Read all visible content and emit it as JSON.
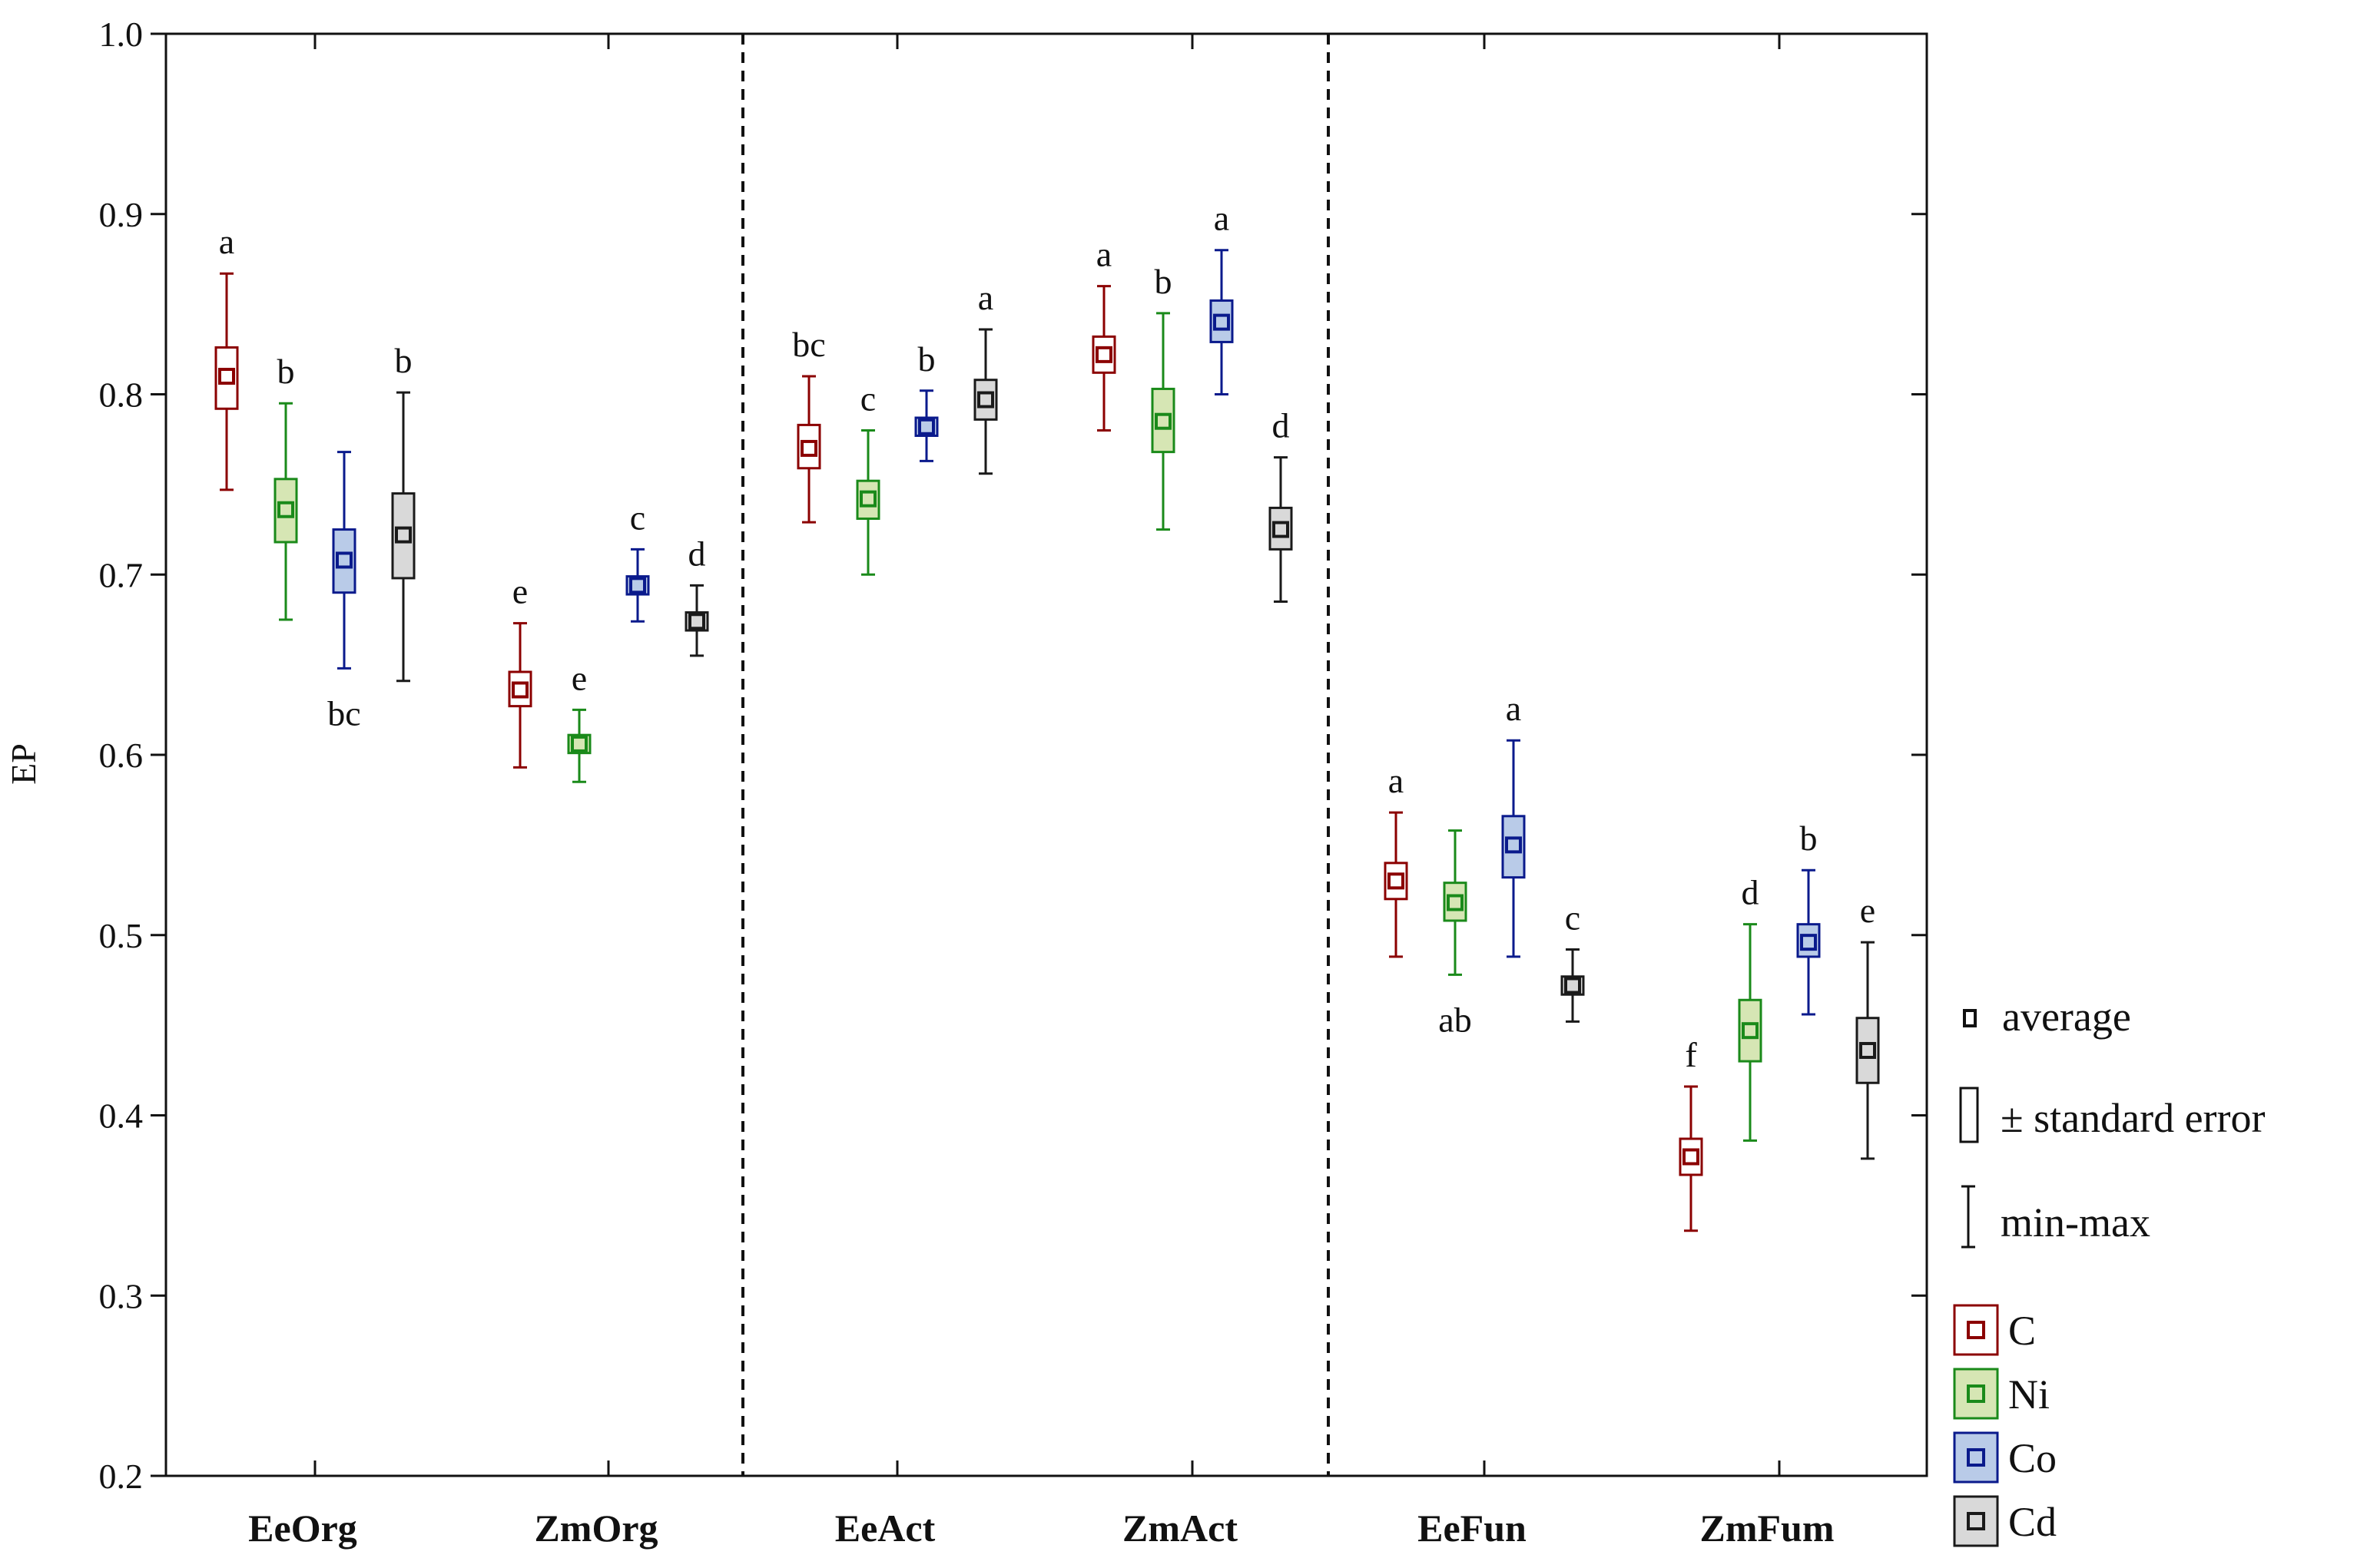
{
  "chart_data": {
    "type": "box",
    "title": "",
    "xlabel": "",
    "ylabel": "EP",
    "ylim": [
      0.2,
      1.0
    ],
    "yticks": [
      "0.2",
      "0.3",
      "0.4",
      "0.5",
      "0.6",
      "0.7",
      "0.8",
      "0.9",
      "1.0"
    ],
    "categories": [
      "EeOrg",
      "ZmOrg",
      "EeAct",
      "ZmAct",
      "EeFun",
      "ZmFum"
    ],
    "group_dividers_after": [
      1,
      3
    ],
    "series": [
      {
        "name": "C",
        "color": "#8b0000",
        "fill": "#ffffff",
        "mean": [
          0.81,
          0.636,
          0.77,
          0.822,
          0.53,
          0.377
        ],
        "se_low": [
          0.792,
          0.627,
          0.759,
          0.812,
          0.52,
          0.367
        ],
        "se_high": [
          0.826,
          0.646,
          0.783,
          0.832,
          0.54,
          0.387
        ],
        "min": [
          0.747,
          0.593,
          0.729,
          0.78,
          0.488,
          0.336
        ],
        "max": [
          0.867,
          0.673,
          0.81,
          0.86,
          0.568,
          0.416
        ],
        "letters": [
          "a",
          "e",
          "bc",
          "a",
          "a",
          "f"
        ],
        "letter_pos": [
          "above",
          "above",
          "above",
          "above",
          "above",
          "above"
        ]
      },
      {
        "name": "Ni",
        "color": "#1a8a1a",
        "fill": "#d6e6b4",
        "mean": [
          0.736,
          0.606,
          0.742,
          0.785,
          0.518,
          0.447
        ],
        "se_low": [
          0.718,
          0.601,
          0.731,
          0.768,
          0.508,
          0.43
        ],
        "se_high": [
          0.753,
          0.611,
          0.752,
          0.803,
          0.529,
          0.464
        ],
        "min": [
          0.675,
          0.585,
          0.7,
          0.725,
          0.478,
          0.386
        ],
        "max": [
          0.795,
          0.625,
          0.78,
          0.845,
          0.558,
          0.506
        ],
        "letters": [
          "b",
          "e",
          "c",
          "b",
          "ab",
          "d"
        ],
        "letter_pos": [
          "above",
          "above",
          "above",
          "above",
          "below",
          "above"
        ]
      },
      {
        "name": "Co",
        "color": "#0a1a8c",
        "fill": "#b9cbe8",
        "mean": [
          0.708,
          0.694,
          0.782,
          0.84,
          0.55,
          0.496
        ],
        "se_low": [
          0.69,
          0.689,
          0.777,
          0.829,
          0.532,
          0.488
        ],
        "se_high": [
          0.725,
          0.699,
          0.787,
          0.852,
          0.566,
          0.506
        ],
        "min": [
          0.648,
          0.674,
          0.763,
          0.8,
          0.488,
          0.456
        ],
        "max": [
          0.768,
          0.714,
          0.802,
          0.88,
          0.608,
          0.536
        ],
        "letters": [
          "bc",
          "c",
          "b",
          "a",
          "a",
          "b"
        ],
        "letter_pos": [
          "below",
          "above",
          "above",
          "above",
          "above",
          "above"
        ]
      },
      {
        "name": "Cd",
        "color": "#1a1a1a",
        "fill": "#d9d9d9",
        "mean": [
          0.722,
          0.674,
          0.797,
          0.725,
          0.472,
          0.436
        ],
        "se_low": [
          0.698,
          0.669,
          0.786,
          0.714,
          0.467,
          0.418
        ],
        "se_high": [
          0.745,
          0.679,
          0.808,
          0.737,
          0.477,
          0.454
        ],
        "min": [
          0.641,
          0.655,
          0.756,
          0.685,
          0.452,
          0.376
        ],
        "max": [
          0.801,
          0.694,
          0.836,
          0.765,
          0.492,
          0.496
        ],
        "letters": [
          "b",
          "d",
          "a",
          "d",
          "c",
          "e"
        ],
        "letter_pos": [
          "above",
          "above",
          "above",
          "above",
          "above",
          "above"
        ]
      }
    ],
    "legend": {
      "position": "right",
      "marker_labels": [
        "average",
        "± standard error",
        "min-max"
      ]
    }
  }
}
